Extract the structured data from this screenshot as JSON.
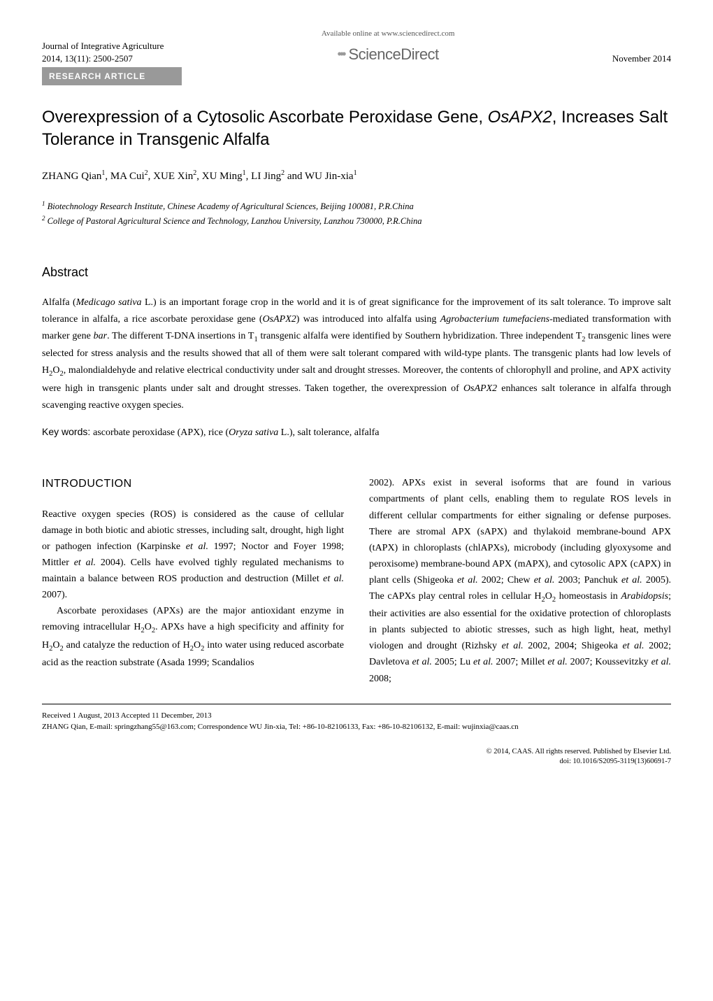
{
  "header": {
    "journal_name": "Journal of Integrative Agriculture",
    "issue_info": "2014, 13(11): 2500-2507",
    "available_text": "Available online at www.sciencedirect.com",
    "sciencedirect_label": "ScienceDirect",
    "date": "November 2014",
    "research_article_label": "RESEARCH  ARTICLE"
  },
  "title": {
    "line1": "Overexpression of a Cytosolic Ascorbate Peroxidase Gene, ",
    "gene": "OsAPX2",
    "line2": ", Increases Salt Tolerance in Transgenic Alfalfa"
  },
  "authors": {
    "a1": "ZHANG Qian",
    "a2": "MA Cui",
    "a3": "XUE Xin",
    "a4": "XU Ming",
    "a5": "LI Jing",
    "a6": "WU Jin-xia"
  },
  "affiliations": {
    "aff1": "Biotechnology Research Institute, Chinese Academy of Agricultural Sciences, Beijing 100081, P.R.China",
    "aff2": "College of Pastoral Agricultural Science and Technology, Lanzhou University, Lanzhou 730000, P.R.China"
  },
  "abstract": {
    "heading": "Abstract",
    "p1a": "Alfalfa (",
    "p1b": "Medicago sativa",
    "p1c": " L.) is an important forage crop in the world and it is of great significance for the improvement of its salt tolerance.  To improve salt tolerance in alfalfa, a rice ascorbate peroxidase gene (",
    "p1d": "OsAPX2",
    "p1e": ") was introduced into alfalfa using ",
    "p1f": "Agrobacterium tumefaciens",
    "p1g": "-mediated transformation with marker gene ",
    "p1h": "bar",
    "p1i": ".  The different T-DNA insertions in T",
    "p1j": " transgenic alfalfa were identified by Southern hybridization.  Three independent T",
    "p1k": " transgenic lines were selected for stress analysis and the results showed that all of them were salt tolerant compared with wild-type plants.  The transgenic plants had low levels of H",
    "p1l": "O",
    "p1m": ", malondialdehyde and relative electrical conductivity under salt and drought stresses.  Moreover, the contents of chlorophyll and proline, and APX activity were high in transgenic plants under salt and drought stresses.  Taken together, the overexpression of ",
    "p1n": "OsAPX2",
    "p1o": " enhances salt tolerance in alfalfa through scavenging reactive oxygen species."
  },
  "keywords": {
    "label": "Key words: ",
    "text1": "ascorbate peroxidase (APX), rice (",
    "text2": "Oryza sativa",
    "text3": " L.), salt tolerance, alfalfa"
  },
  "intro": {
    "heading": "INTRODUCTION",
    "col1_p1a": "Reactive oxygen species (ROS) is considered as the cause of cellular damage in both biotic and abiotic stresses, including salt, drought, high light or pathogen infection (Karpinske ",
    "col1_p1b": "et al.",
    "col1_p1c": " 1997; Noctor and Foyer 1998; Mittler ",
    "col1_p1d": "et al.",
    "col1_p1e": " 2004).  Cells have evolved tighly regulated mechanisms to maintain a balance between ROS production and destruction (Millet ",
    "col1_p1f": "et al.",
    "col1_p1g": " 2007).",
    "col1_p2a": "Ascorbate peroxidases (APXs) are the major antioxidant enzyme in removing intracellular H",
    "col1_p2b": "O",
    "col1_p2c": ".  APXs have a high specificity and affinity for H",
    "col1_p2d": "O",
    "col1_p2e": " and catalyze the reduction of H",
    "col1_p2f": "O",
    "col1_p2g": " into water using reduced ascorbate acid as the reaction substrate (Asada 1999; Scandalios",
    "col2_p1a": "2002).  APXs exist in several isoforms that are found in various compartments of plant cells, enabling them to regulate ROS levels in different cellular compartments for either signaling or defense purposes.  There are stromal APX (sAPX) and thylakoid membrane-bound APX (tAPX) in chloroplasts (chlAPXs), microbody (including glyoxysome and peroxisome) membrane-bound APX (mAPX), and cytosolic APX (cAPX) in plant cells (Shigeoka ",
    "col2_p1b": "et al.",
    "col2_p1c": " 2002; Chew ",
    "col2_p1d": "et al.",
    "col2_p1e": " 2003; Panchuk ",
    "col2_p1f": "et al.",
    "col2_p1g": " 2005).  The cAPXs play central roles in cellular H",
    "col2_p1h": "O",
    "col2_p1i": " homeostasis in ",
    "col2_p1j": "Arabidopsis",
    "col2_p1k": "; their activities are also essential for the oxidative protection of chloroplasts in plants subjected to abiotic stresses, such as high light, heat, methyl viologen and drought (Rizhsky ",
    "col2_p1l": "et al.",
    "col2_p1m": " 2002, 2004; Shigeoka ",
    "col2_p1n": "et al.",
    "col2_p1o": " 2002; Davletova ",
    "col2_p1p": "et al.",
    "col2_p1q": " 2005; Lu ",
    "col2_p1r": "et al.",
    "col2_p1s": " 2007; Millet ",
    "col2_p1t": "et al.",
    "col2_p1u": " 2007; Koussevitzky ",
    "col2_p1v": "et al.",
    "col2_p1w": " 2008;"
  },
  "footer": {
    "received": "Received  1 August, 2013    Accepted  11 December, 2013",
    "correspondence": "ZHANG Qian, E-mail: springzhang55@163.com; Correspondence WU Jin-xia, Tel: +86-10-82106133, Fax: +86-10-82106132, E-mail: wujinxia@caas.cn",
    "copyright": "© 2014, CAAS. All rights reserved. Published by Elsevier Ltd.",
    "doi": "doi: 10.1016/S2095-3119(13)60691-7"
  }
}
